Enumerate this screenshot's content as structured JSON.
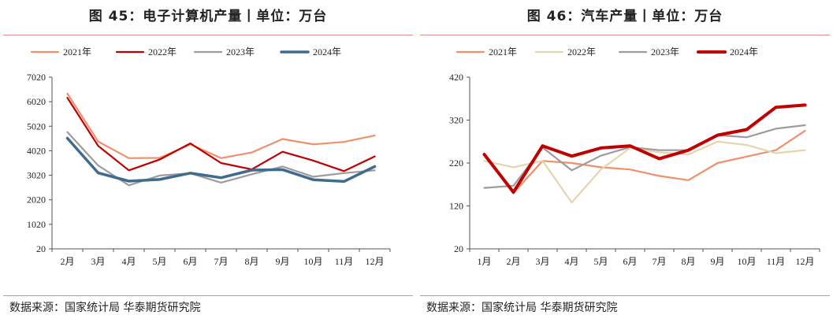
{
  "chart_data": [
    {
      "type": "line",
      "title": "图 45：电子计算机产量丨单位：万台",
      "source": "数据来源：国家统计局 华泰期货研究院",
      "categories": [
        "2月",
        "3月",
        "4月",
        "5月",
        "6月",
        "7月",
        "8月",
        "9月",
        "10月",
        "11月",
        "12月"
      ],
      "ylim": [
        20,
        7020
      ],
      "yticks": [
        "20",
        "1020",
        "2020",
        "3020",
        "4020",
        "5020",
        "6020",
        "7020"
      ],
      "ytick_values": [
        20,
        1020,
        2020,
        3020,
        4020,
        5020,
        6020,
        7020
      ],
      "legend_position": "top",
      "series": [
        {
          "name": "2021年",
          "color": "#f0906a",
          "width": 2.2,
          "values": [
            6350,
            4400,
            3720,
            3730,
            4280,
            3720,
            3950,
            4500,
            4280,
            4380,
            4640
          ]
        },
        {
          "name": "2022年",
          "color": "#c00000",
          "width": 2.2,
          "values": [
            6180,
            4220,
            3220,
            3660,
            4320,
            3520,
            3260,
            3980,
            3620,
            3190,
            3790
          ]
        },
        {
          "name": "2023年",
          "color": "#9e9a9e",
          "width": 2.2,
          "values": [
            4780,
            3420,
            2610,
            3010,
            3100,
            2720,
            3060,
            3380,
            2960,
            3110,
            3220
          ]
        },
        {
          "name": "2024年",
          "color": "#3f6b8d",
          "width": 3.5,
          "values": [
            4530,
            3120,
            2780,
            2850,
            3110,
            2920,
            3230,
            3250,
            2840,
            2770,
            3380
          ]
        }
      ]
    },
    {
      "type": "line",
      "title": "图 46：汽车产量丨单位：万台",
      "source": "数据来源：国家统计局 华泰期货研究院",
      "categories": [
        "1月",
        "2月",
        "3月",
        "4月",
        "5月",
        "6月",
        "7月",
        "8月",
        "9月",
        "10月",
        "11月",
        "12月"
      ],
      "ylim": [
        20,
        420
      ],
      "yticks": [
        "20",
        "120",
        "220",
        "320",
        "420"
      ],
      "ytick_values": [
        20,
        120,
        220,
        320,
        420
      ],
      "legend_position": "top",
      "series": [
        {
          "name": "2021年",
          "color": "#f0906a",
          "width": 2.2,
          "values": [
            240,
            150,
            225,
            220,
            210,
            205,
            190,
            180,
            220,
            235,
            250,
            295
          ]
        },
        {
          "name": "2022年",
          "color": "#e6d4ad",
          "width": 2.2,
          "values": [
            225,
            210,
            225,
            128,
            205,
            255,
            245,
            240,
            270,
            262,
            243,
            250
          ]
        },
        {
          "name": "2023年",
          "color": "#9e9a9e",
          "width": 2.2,
          "values": [
            162,
            167,
            256,
            203,
            237,
            257,
            250,
            250,
            285,
            280,
            300,
            308
          ]
        },
        {
          "name": "2024年",
          "color": "#c00000",
          "width": 4,
          "values": [
            240,
            152,
            260,
            236,
            255,
            260,
            230,
            250,
            285,
            298,
            350,
            355
          ]
        }
      ]
    }
  ]
}
